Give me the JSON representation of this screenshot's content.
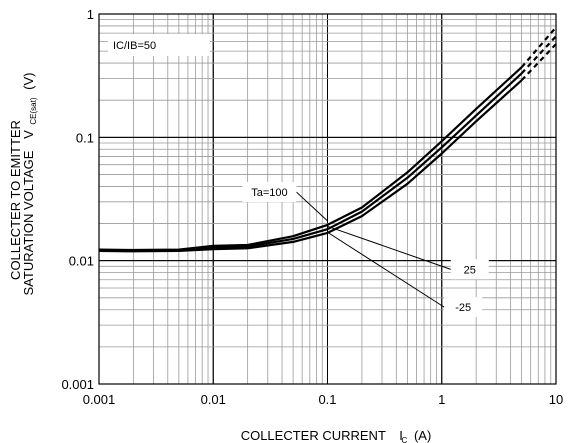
{
  "chart_data": {
    "type": "line",
    "x_scale": "log",
    "y_scale": "log",
    "xlim": [
      0.001,
      10
    ],
    "ylim": [
      0.001,
      1
    ],
    "grid": true,
    "xlabel": "COLLECTER CURRENT",
    "xlabel_symbol": "I",
    "xlabel_subscript": "C",
    "xlabel_unit": "(A)",
    "ylabel_line1": "COLLECTER TO EMITTER",
    "ylabel_line2": "SATURATION VOLTAGE",
    "ylabel_symbol": "V",
    "ylabel_subscript": "CE(sat)",
    "ylabel_unit": "(V)",
    "x_ticks": [
      {
        "value": 0.001,
        "label": "0.001"
      },
      {
        "value": 0.01,
        "label": "0.01"
      },
      {
        "value": 0.1,
        "label": "0.1"
      },
      {
        "value": 1,
        "label": "1"
      },
      {
        "value": 10,
        "label": "10"
      }
    ],
    "y_ticks": [
      {
        "value": 0.001,
        "label": "0.001"
      },
      {
        "value": 0.01,
        "label": "0.01"
      },
      {
        "value": 0.1,
        "label": "0.1"
      },
      {
        "value": 1,
        "label": "1"
      }
    ],
    "condition_label": "IC/IB=50",
    "series": [
      {
        "name": "Ta=100",
        "points": [
          [
            0.001,
            0.0123
          ],
          [
            0.002,
            0.0122
          ],
          [
            0.005,
            0.0123
          ],
          [
            0.01,
            0.0132
          ],
          [
            0.02,
            0.0134
          ],
          [
            0.05,
            0.0158
          ],
          [
            0.1,
            0.0195
          ],
          [
            0.2,
            0.027
          ],
          [
            0.5,
            0.052
          ],
          [
            1,
            0.093
          ],
          [
            2,
            0.17
          ],
          [
            5,
            0.37
          ]
        ],
        "dashed_tail": [
          [
            5,
            0.37
          ],
          [
            10,
            0.78
          ]
        ]
      },
      {
        "name": "25",
        "points": [
          [
            0.001,
            0.0121
          ],
          [
            0.002,
            0.012
          ],
          [
            0.005,
            0.0121
          ],
          [
            0.01,
            0.0128
          ],
          [
            0.02,
            0.013
          ],
          [
            0.05,
            0.015
          ],
          [
            0.1,
            0.018
          ],
          [
            0.2,
            0.025
          ],
          [
            0.5,
            0.047
          ],
          [
            1,
            0.083
          ],
          [
            2,
            0.15
          ],
          [
            5,
            0.33
          ]
        ],
        "dashed_tail": [
          [
            5,
            0.33
          ],
          [
            10,
            0.66
          ]
        ]
      },
      {
        "name": "-25",
        "points": [
          [
            0.001,
            0.012
          ],
          [
            0.002,
            0.0119
          ],
          [
            0.005,
            0.012
          ],
          [
            0.01,
            0.0124
          ],
          [
            0.02,
            0.0126
          ],
          [
            0.05,
            0.0142
          ],
          [
            0.1,
            0.0168
          ],
          [
            0.2,
            0.023
          ],
          [
            0.5,
            0.042
          ],
          [
            1,
            0.074
          ],
          [
            2,
            0.135
          ],
          [
            5,
            0.29
          ]
        ],
        "dashed_tail": [
          [
            5,
            0.29
          ],
          [
            10,
            0.57
          ]
        ]
      }
    ],
    "annotations": [
      {
        "label": "Ta=100",
        "text_at": [
          0.018,
          0.036
        ],
        "arrow_to": [
          0.1,
          0.021
        ]
      },
      {
        "label": "25",
        "text_at": [
          1.2,
          0.0085
        ],
        "arrow_to": [
          0.1,
          0.019
        ]
      },
      {
        "label": "-25",
        "text_at": [
          1.05,
          0.0042
        ],
        "arrow_to": [
          0.1,
          0.017
        ]
      }
    ]
  }
}
